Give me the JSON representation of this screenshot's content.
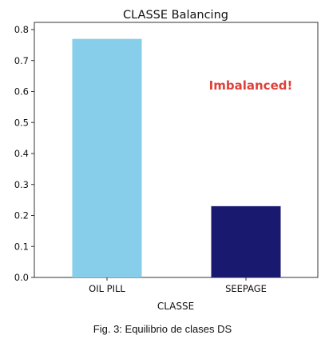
{
  "chart_data": {
    "type": "bar",
    "title": "CLASSE Balancing",
    "xlabel": "CLASSE",
    "ylabel": "",
    "categories": [
      "OIL PILL",
      "SEEPAGE"
    ],
    "values": [
      0.77,
      0.23
    ],
    "bar_colors": [
      "#87CEEB",
      "#191970"
    ],
    "ylim": [
      0,
      0.8
    ],
    "yticks": [
      0.0,
      0.1,
      0.2,
      0.3,
      0.4,
      0.5,
      0.6,
      0.7,
      0.8
    ],
    "ytick_labels": [
      "0.0",
      "0.1",
      "0.2",
      "0.3",
      "0.4",
      "0.5",
      "0.6",
      "0.7",
      "0.8"
    ],
    "grid": false,
    "annotations": [
      {
        "text": "Imbalanced!",
        "color": "#E0403A"
      }
    ]
  },
  "caption": "Fig. 3: Equilibrio de clases DS"
}
